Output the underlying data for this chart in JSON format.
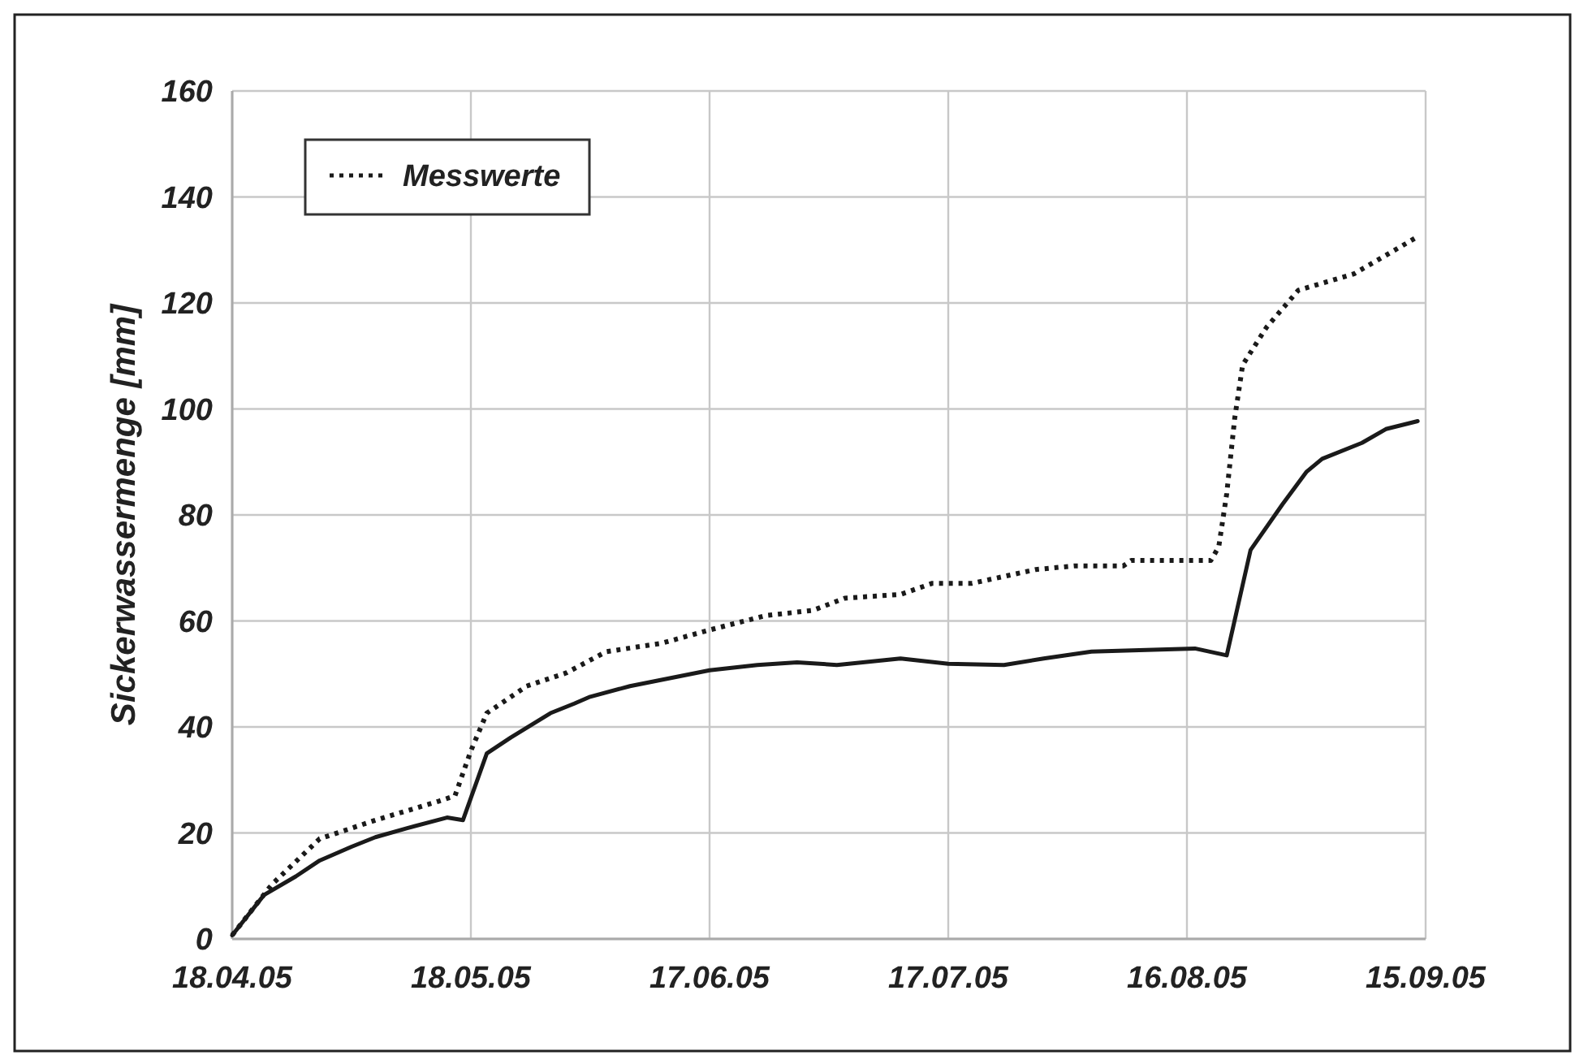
{
  "chart_data": {
    "type": "line",
    "ylabel": "Sickerwassermenge [mm]",
    "xlim": [
      "2005-04-18",
      "2005-09-15"
    ],
    "xticks": [
      {
        "value": "2005-04-18",
        "label": "18.04.05"
      },
      {
        "value": "2005-05-18",
        "label": "18.05.05"
      },
      {
        "value": "2005-06-17",
        "label": "17.06.05"
      },
      {
        "value": "2005-07-17",
        "label": "17.07.05"
      },
      {
        "value": "2005-08-16",
        "label": "16.08.05"
      },
      {
        "value": "2005-09-15",
        "label": "15.09.05"
      }
    ],
    "ylim": [
      0,
      160
    ],
    "yticks": [
      0,
      20,
      40,
      60,
      80,
      100,
      120,
      140,
      160
    ],
    "grid": true,
    "legend": "top left",
    "series": [
      {
        "color": "#1a1a1a",
        "line_style": "solid",
        "x": [
          "2005-04-18",
          "2005-04-22",
          "2005-04-26",
          "2005-04-29",
          "2005-05-03",
          "2005-05-06",
          "2005-05-10",
          "2005-05-15",
          "2005-05-17",
          "2005-05-20",
          "2005-05-23",
          "2005-05-28",
          "2005-05-31",
          "2005-06-02",
          "2005-06-07",
          "2005-06-12",
          "2005-06-17",
          "2005-06-23",
          "2005-06-28",
          "2005-07-03",
          "2005-07-11",
          "2005-07-17",
          "2005-07-24",
          "2005-07-29",
          "2005-08-04",
          "2005-08-10",
          "2005-08-17",
          "2005-08-21",
          "2005-08-24",
          "2005-08-28",
          "2005-08-31",
          "2005-09-02",
          "2005-09-07",
          "2005-09-10",
          "2005-09-14"
        ],
        "values": [
          0.7,
          8.3,
          11.8,
          14.8,
          17.4,
          19.2,
          20.9,
          22.9,
          22.4,
          35,
          38,
          42.6,
          44.4,
          45.7,
          47.7,
          49.2,
          50.7,
          51.7,
          52.2,
          51.7,
          52.9,
          51.9,
          51.7,
          52.9,
          54.2,
          54.5,
          54.8,
          53.5,
          73.4,
          82,
          88.1,
          90.6,
          93.6,
          96.2,
          97.7
        ]
      },
      {
        "name": "Messwerte",
        "color": "#1a1a1a",
        "line_style": "dotted",
        "x": [
          "2005-04-18",
          "2005-04-23",
          "2005-04-29",
          "2005-05-06",
          "2005-05-14",
          "2005-05-16",
          "2005-05-18",
          "2005-05-20",
          "2005-05-25",
          "2005-05-30",
          "2005-06-04",
          "2005-06-11",
          "2005-06-17",
          "2005-06-24",
          "2005-06-30",
          "2005-07-04",
          "2005-07-11",
          "2005-07-15",
          "2005-07-20",
          "2005-07-28",
          "2005-08-02",
          "2005-08-08",
          "2005-08-09",
          "2005-08-19",
          "2005-08-20",
          "2005-08-21",
          "2005-08-22",
          "2005-08-23",
          "2005-08-26",
          "2005-08-30",
          "2005-09-06",
          "2005-09-14"
        ],
        "values": [
          0.7,
          10.3,
          18.9,
          22.4,
          26,
          27,
          35.5,
          42.6,
          47.7,
          50.2,
          54.2,
          55.8,
          58.3,
          61,
          62,
          64.3,
          65,
          67.1,
          67.1,
          69.7,
          70.4,
          70.4,
          71.4,
          71.4,
          74,
          84,
          98.2,
          108.3,
          115.4,
          122.4,
          125.5,
          132.5
        ]
      }
    ]
  }
}
